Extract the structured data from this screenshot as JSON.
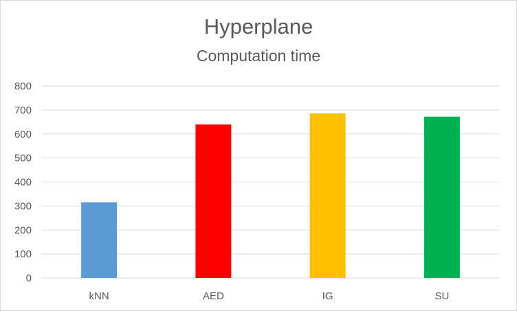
{
  "chart_data": {
    "type": "bar",
    "title": "Hyperplane",
    "subtitle": "Computation time",
    "categories": [
      "kNN",
      "AED",
      "IG",
      "SU"
    ],
    "values": [
      315,
      640,
      686,
      672
    ],
    "colors": [
      "#5b9bd5",
      "#ff0000",
      "#ffc000",
      "#00b050"
    ],
    "ylim": [
      0,
      800
    ],
    "yticks": [
      0,
      100,
      200,
      300,
      400,
      500,
      600,
      700,
      800
    ],
    "grid": true,
    "legend": "none",
    "xlabel": "",
    "ylabel": ""
  }
}
